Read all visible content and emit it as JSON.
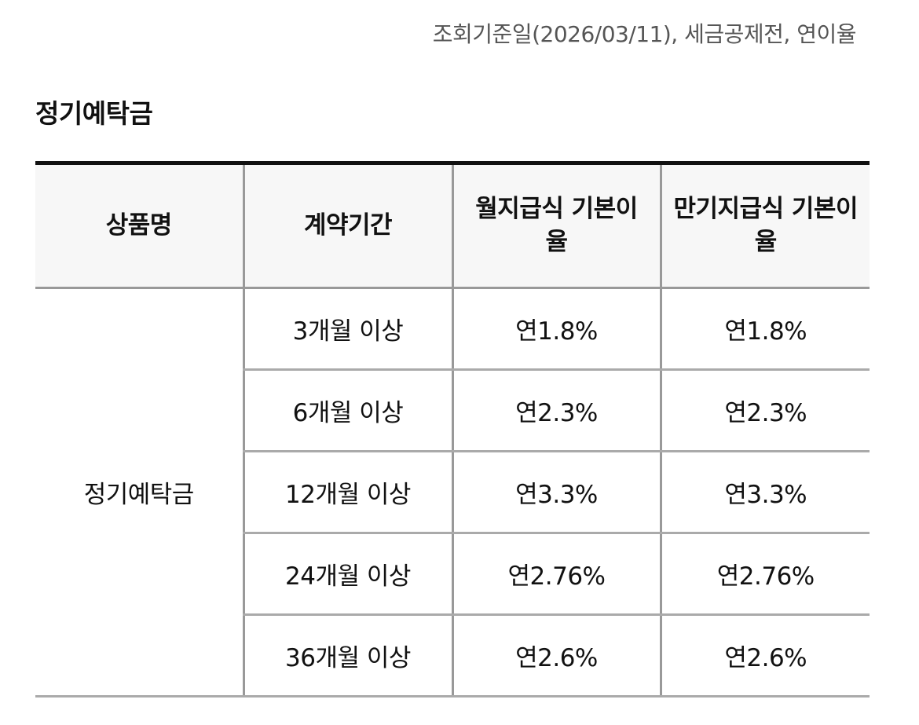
{
  "header": {
    "query_note": "조회기준일(2026/03/11), 세금공제전, 연이율"
  },
  "section": {
    "title": "정기예탁금"
  },
  "table": {
    "columns": [
      "상품명",
      "계약기간",
      "월지급식 기본이율",
      "만기지급식 기본이율"
    ],
    "product_name": "정기예탁금",
    "rows": [
      {
        "period": "3개월 이상",
        "monthly_rate": "연1.8%",
        "maturity_rate": "연1.8%"
      },
      {
        "period": "6개월 이상",
        "monthly_rate": "연2.3%",
        "maturity_rate": "연2.3%"
      },
      {
        "period": "12개월 이상",
        "monthly_rate": "연3.3%",
        "maturity_rate": "연3.3%"
      },
      {
        "period": "24개월 이상",
        "monthly_rate": "연2.76%",
        "maturity_rate": "연2.76%"
      },
      {
        "period": "36개월 이상",
        "monthly_rate": "연2.6%",
        "maturity_rate": "연2.6%"
      }
    ]
  }
}
